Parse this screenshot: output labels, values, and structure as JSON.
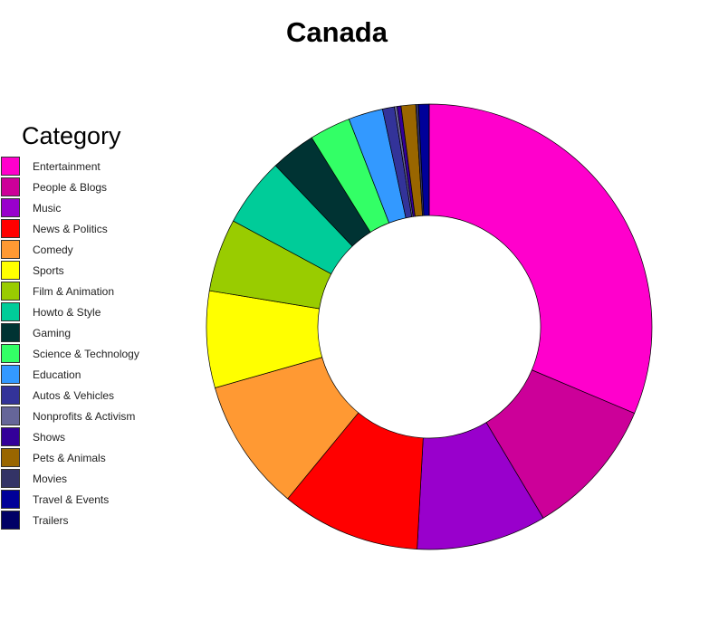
{
  "chart_data": {
    "type": "pie",
    "title": "Canada",
    "legend_title": "Category",
    "legend_position": "left",
    "donut": true,
    "categories": [
      "Entertainment",
      "People & Blogs",
      "Music",
      "News & Politics",
      "Comedy",
      "Sports",
      "Film & Animation",
      "Howto & Style",
      "Gaming",
      "Science & Technology",
      "Education",
      "Autos & Vehicles",
      "Nonprofits & Activism",
      "Shows",
      "Pets & Animals",
      "Movies",
      "Travel & Events",
      "Trailers"
    ],
    "values": [
      32.6,
      10.5,
      9.8,
      10.5,
      10.0,
      7.3,
      5.5,
      5.2,
      3.4,
      3.1,
      2.6,
      0.9,
      0.2,
      0.3,
      1.1,
      0.2,
      0.8,
      0.0
    ],
    "colors": [
      "#FF00CC",
      "#CC0099",
      "#9900CC",
      "#FF0000",
      "#FF9933",
      "#FFFF00",
      "#99CC00",
      "#00CC99",
      "#003333",
      "#33FF66",
      "#3399FF",
      "#333399",
      "#666699",
      "#330099",
      "#996600",
      "#333366",
      "#000099",
      "#000066"
    ]
  }
}
